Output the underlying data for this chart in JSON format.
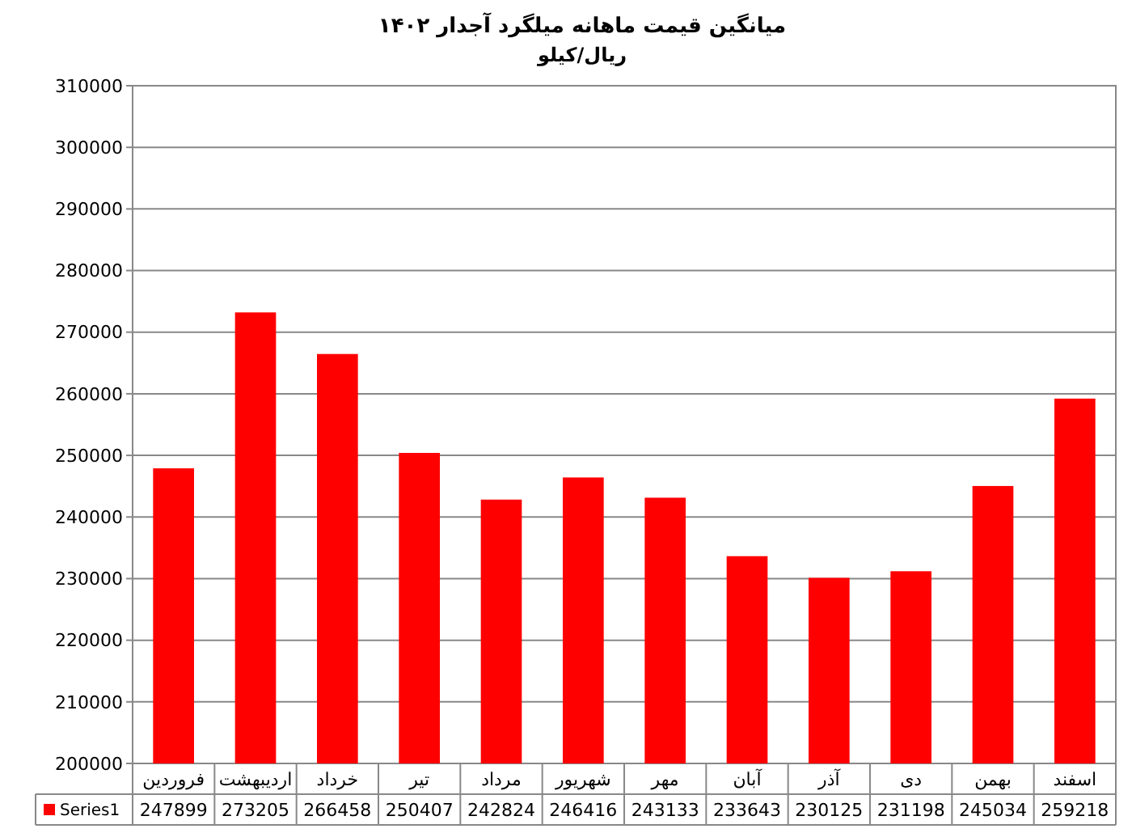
{
  "chart_data": {
    "type": "bar",
    "title": "میانگین قیمت ماهانه میلگرد آجدار ۱۴۰۲",
    "subtitle": "ریال/کیلو",
    "categories": [
      "فروردین",
      "اردیبهشت",
      "خرداد",
      "تیر",
      "مرداد",
      "شهریور",
      "مهر",
      "آبان",
      "آذر",
      "دی",
      "بهمن",
      "اسفند"
    ],
    "series": [
      {
        "name": "Series1",
        "color": "#ff0000",
        "values": [
          247899,
          273205,
          266458,
          250407,
          242824,
          246416,
          243133,
          233643,
          230125,
          231198,
          245034,
          259218
        ]
      }
    ],
    "ylim": [
      200000,
      310000
    ],
    "yticks": [
      200000,
      210000,
      220000,
      230000,
      240000,
      250000,
      260000,
      270000,
      280000,
      290000,
      300000,
      310000
    ],
    "grid": "y",
    "data_labels": true,
    "legend": "bottom"
  }
}
